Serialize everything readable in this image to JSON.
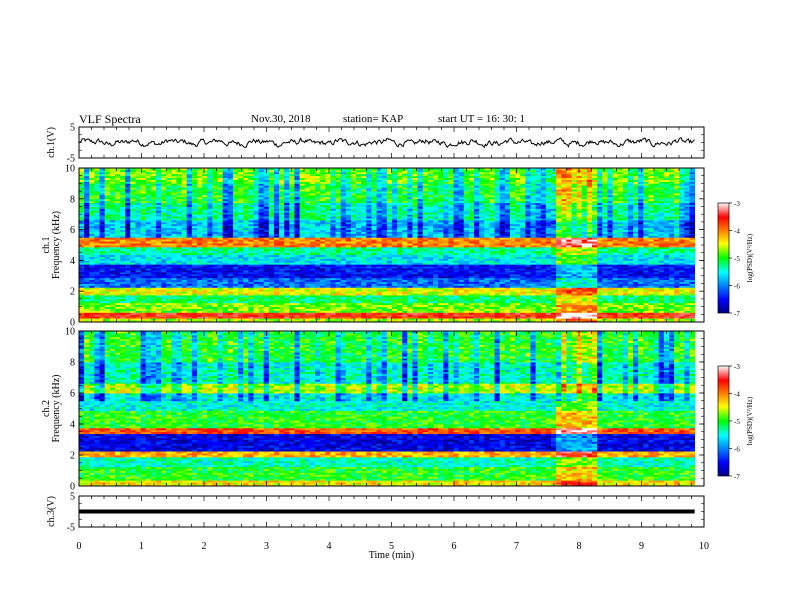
{
  "header": {
    "title": "VLF Spectra",
    "date": "Nov.30, 2018",
    "station": "station= KAP",
    "start": "start  UT  =   16: 30: 1"
  },
  "chart_data": [
    {
      "type": "line",
      "panel": "ch1-waveform",
      "ylabel": "ch.1(V)",
      "ylim": [
        -5,
        5
      ],
      "yticks": [
        "5",
        "-5"
      ],
      "xlim": [
        0,
        10
      ],
      "x_extent_min": 9.85,
      "amplitude_range_V": [
        -1.5,
        1.5
      ]
    },
    {
      "type": "heatmap",
      "panel": "ch1-spectrogram",
      "ylabel": "ch.1\nFrequency  (kHz)",
      "ylim": [
        0,
        10
      ],
      "yticks": [
        "0",
        "2",
        "4",
        "6",
        "8",
        "10"
      ],
      "xlim": [
        0,
        10
      ],
      "x_extent_min": 9.85,
      "colorbar": {
        "label": "log(PSD)(V²/Hz)",
        "range": [
          -7,
          -3
        ],
        "ticks": [
          "-3",
          "-4",
          "-5",
          "-6",
          "-7"
        ]
      },
      "enhanced_interval_min": [
        7.65,
        8.25
      ],
      "bands_kHz": [
        {
          "f": [
            0.0,
            0.3
          ],
          "level": -4.6
        },
        {
          "f": [
            0.3,
            0.6
          ],
          "level": -3.6
        },
        {
          "f": [
            0.6,
            1.3
          ],
          "level": -4.8
        },
        {
          "f": [
            1.3,
            1.8
          ],
          "level": -5.2
        },
        {
          "f": [
            1.8,
            2.3
          ],
          "level": -4.5
        },
        {
          "f": [
            2.3,
            2.9
          ],
          "level": -6.1
        },
        {
          "f": [
            2.9,
            3.7
          ],
          "level": -6.5
        },
        {
          "f": [
            3.7,
            4.4
          ],
          "level": -5.6
        },
        {
          "f": [
            4.4,
            4.9
          ],
          "level": -5.3
        },
        {
          "f": [
            4.9,
            5.5
          ],
          "level": -4.0
        },
        {
          "f": [
            5.5,
            6.6
          ],
          "level": -5.7
        },
        {
          "f": [
            6.6,
            7.8
          ],
          "level": -5.3
        },
        {
          "f": [
            7.8,
            9.0
          ],
          "level": -5.0
        },
        {
          "f": [
            9.0,
            10.0
          ],
          "level": -4.8
        }
      ]
    },
    {
      "type": "heatmap",
      "panel": "ch2-spectrogram",
      "ylabel": "ch.2\nFrequency  (kHz)",
      "ylim": [
        0,
        10
      ],
      "yticks": [
        "0",
        "2",
        "4",
        "6",
        "8",
        "10"
      ],
      "xlim": [
        0,
        10
      ],
      "x_extent_min": 9.85,
      "colorbar": {
        "label": "log(PSD)(V²/Hz)",
        "range": [
          -7,
          -3
        ],
        "ticks": [
          "-3",
          "-4",
          "-5",
          "-6",
          "-7"
        ]
      },
      "enhanced_interval_min": [
        7.65,
        8.25
      ],
      "bands_kHz": [
        {
          "f": [
            0.0,
            0.4
          ],
          "level": -4.4
        },
        {
          "f": [
            0.4,
            1.2
          ],
          "level": -5.0
        },
        {
          "f": [
            1.2,
            1.9
          ],
          "level": -5.4
        },
        {
          "f": [
            1.9,
            2.2
          ],
          "level": -4.2
        },
        {
          "f": [
            2.2,
            3.4
          ],
          "level": -6.6
        },
        {
          "f": [
            3.4,
            3.8
          ],
          "level": -3.8
        },
        {
          "f": [
            3.8,
            4.9
          ],
          "level": -5.0
        },
        {
          "f": [
            4.9,
            6.0
          ],
          "level": -5.5
        },
        {
          "f": [
            6.0,
            6.6
          ],
          "level": -4.6
        },
        {
          "f": [
            6.6,
            8.0
          ],
          "level": -5.4
        },
        {
          "f": [
            8.0,
            10.0
          ],
          "level": -5.0
        }
      ]
    },
    {
      "type": "line",
      "panel": "ch3-waveform",
      "ylabel": "ch.3(V)",
      "ylim": [
        -5,
        5
      ],
      "yticks": [
        "5",
        "-5"
      ],
      "xlim": [
        0,
        10
      ],
      "x_extent_min": 9.85,
      "constant_value_V": 0,
      "xlabel": "Time  (min)",
      "xticks": [
        "0",
        "1",
        "2",
        "3",
        "4",
        "5",
        "6",
        "7",
        "8",
        "9",
        "10"
      ]
    }
  ]
}
